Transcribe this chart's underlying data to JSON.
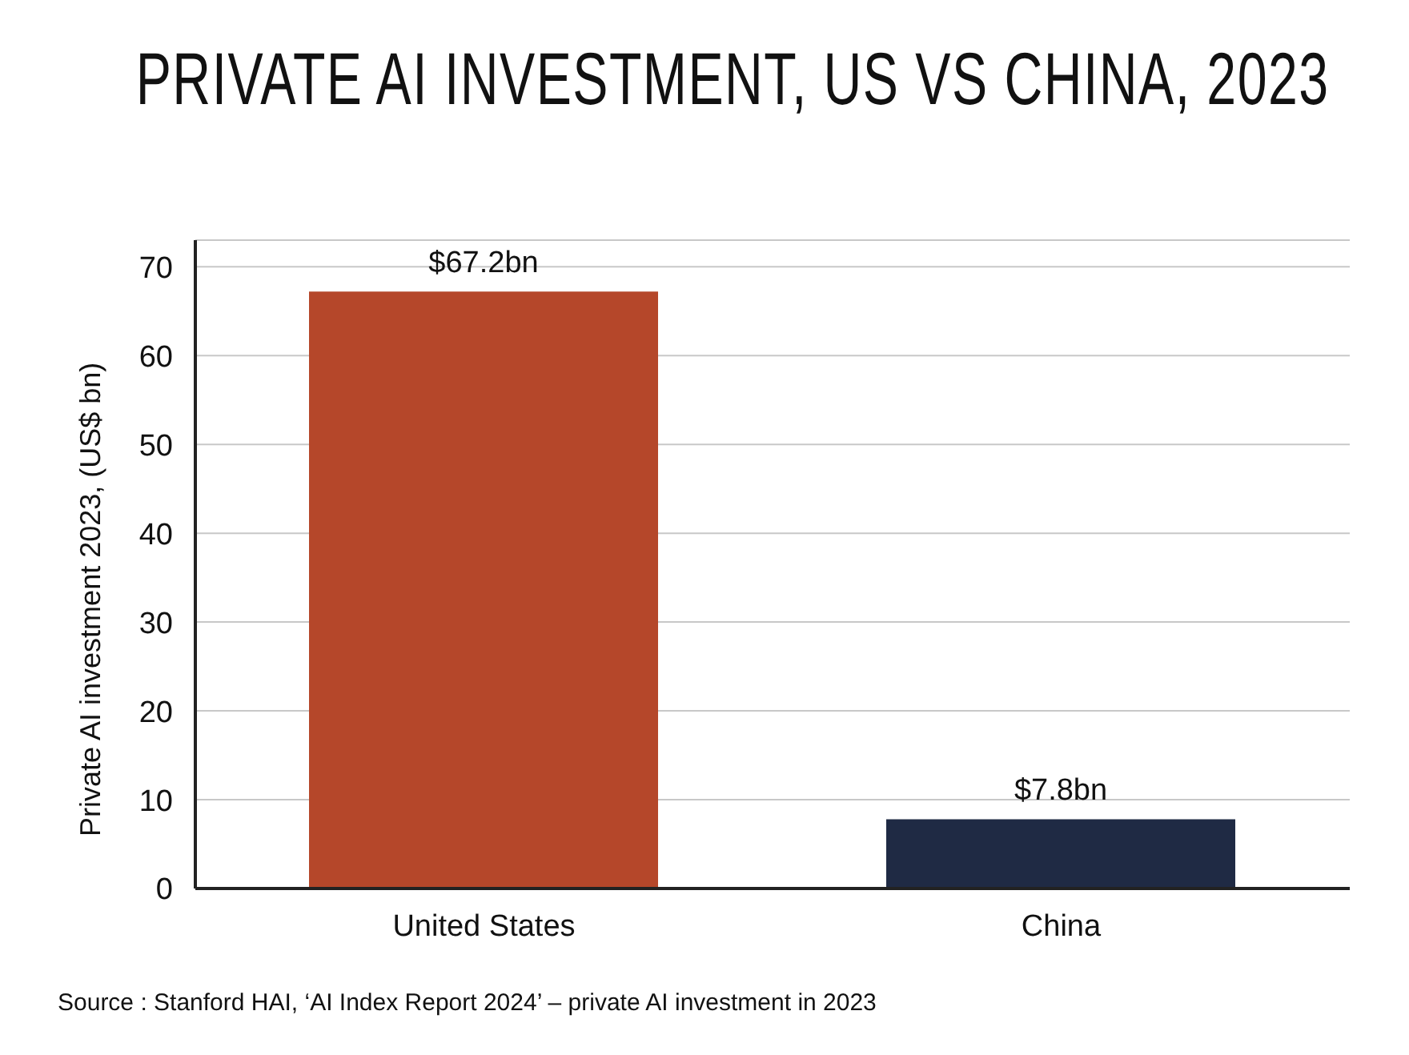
{
  "chart_data": {
    "type": "bar",
    "title": "PRIVATE AI INVESTMENT, US VS CHINA, 2023",
    "ylabel": "Private AI investment 2023, (US$ bn)",
    "categories": [
      "United States",
      "China"
    ],
    "values": [
      67.2,
      7.8
    ],
    "colors": [
      "#b5472a",
      "#1f2a44"
    ],
    "value_labels": [
      "$67.2bn",
      "$7.8bn"
    ],
    "ylim": [
      0,
      73
    ],
    "yticks": [
      0,
      10,
      20,
      30,
      40,
      50,
      60,
      70
    ],
    "grid": "y",
    "legend": false,
    "annotations": [
      "Source : Stanford HAI, ‘AI Index Report 2024’ – private AI investment in 2023"
    ]
  }
}
